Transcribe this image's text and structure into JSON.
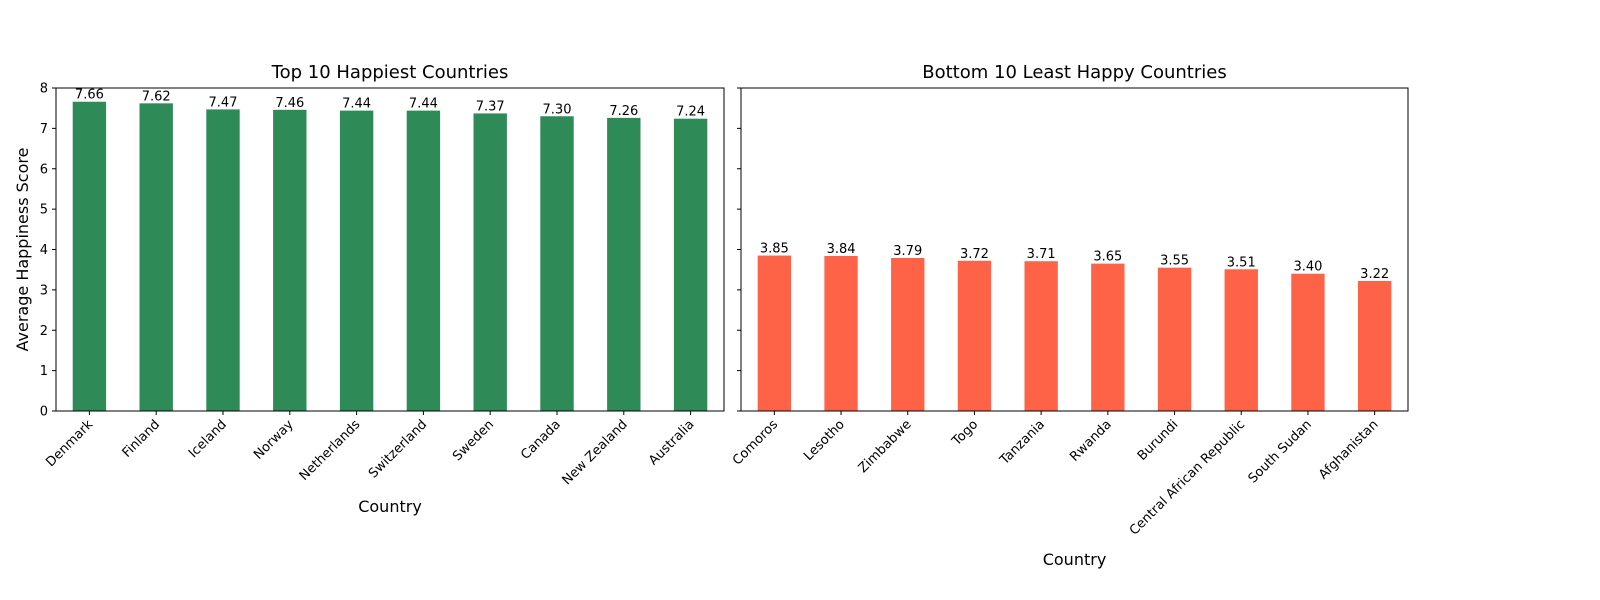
{
  "chart_data": [
    {
      "type": "bar",
      "title": "Top 10 Happiest Countries",
      "xlabel": "Country",
      "ylabel": "Average Happiness Score",
      "categories": [
        "Denmark",
        "Finland",
        "Iceland",
        "Norway",
        "Netherlands",
        "Switzerland",
        "Sweden",
        "Canada",
        "New Zealand",
        "Australia"
      ],
      "values": [
        7.66,
        7.62,
        7.47,
        7.46,
        7.44,
        7.44,
        7.37,
        7.3,
        7.26,
        7.24
      ],
      "value_labels": [
        "7.66",
        "7.62",
        "7.47",
        "7.46",
        "7.44",
        "7.44",
        "7.37",
        "7.30",
        "7.26",
        "7.24"
      ],
      "ylim": [
        0,
        8
      ],
      "yticks": [
        "0",
        "1",
        "2",
        "3",
        "4",
        "5",
        "6",
        "7",
        "8"
      ],
      "color": "#2e8b57",
      "grid": false
    },
    {
      "type": "bar",
      "title": "Bottom 10 Least Happy Countries",
      "xlabel": "Country",
      "ylabel": "",
      "categories": [
        "Comoros",
        "Lesotho",
        "Zimbabwe",
        "Togo",
        "Tanzania",
        "Rwanda",
        "Burundi",
        "Central African Republic",
        "South Sudan",
        "Afghanistan"
      ],
      "values": [
        3.85,
        3.84,
        3.79,
        3.72,
        3.71,
        3.65,
        3.55,
        3.51,
        3.4,
        3.22
      ],
      "value_labels": [
        "3.85",
        "3.84",
        "3.79",
        "3.72",
        "3.71",
        "3.65",
        "3.55",
        "3.51",
        "3.40",
        "3.22"
      ],
      "ylim": [
        0,
        8
      ],
      "yticks": [],
      "color": "#ff6347",
      "grid": false
    }
  ]
}
